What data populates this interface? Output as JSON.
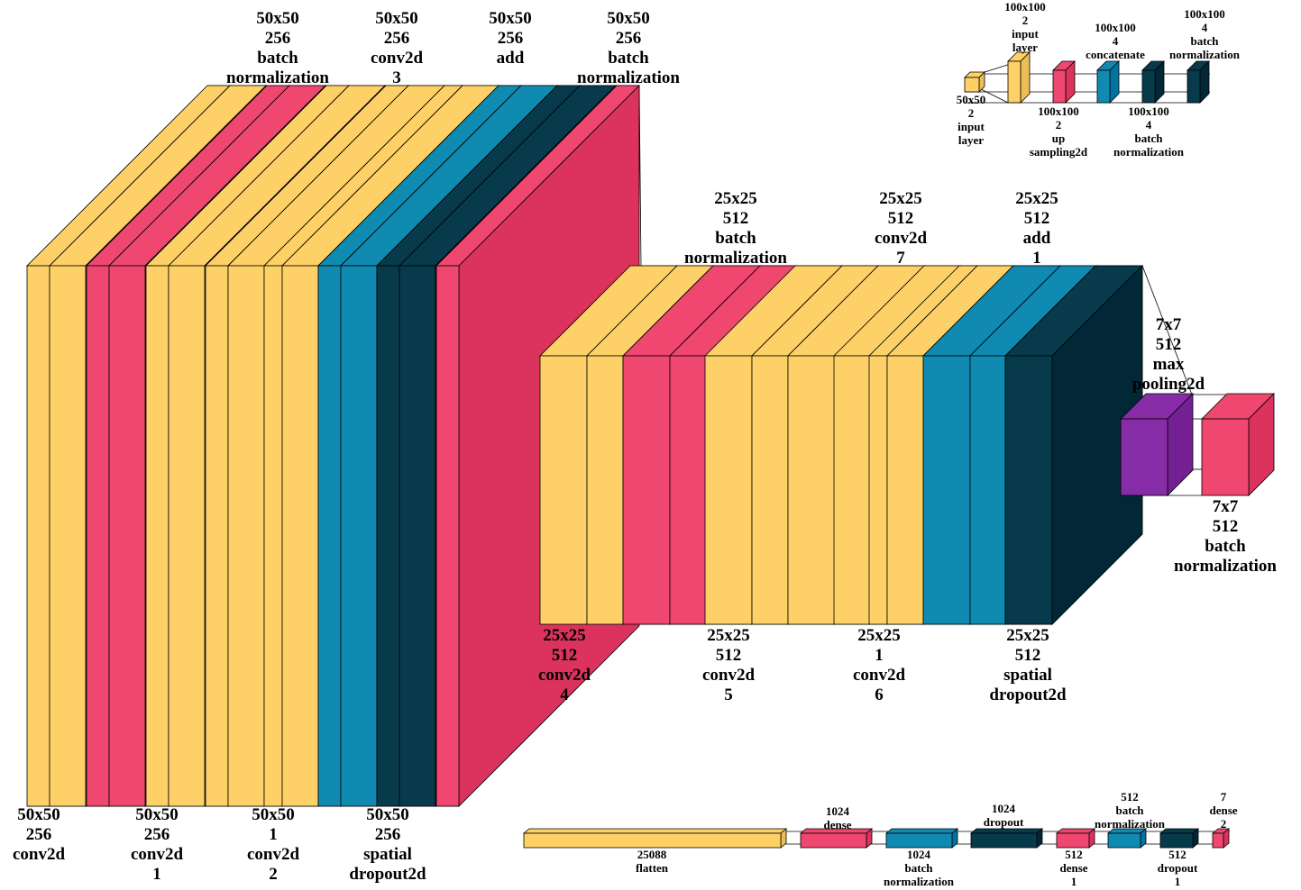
{
  "colors": {
    "yellow": "#fdd167",
    "yellow_side": "#ecbe55",
    "pink": "#ef4770",
    "pink_side": "#db335d",
    "blue": "#118ab2",
    "blue_side": "#0074a0",
    "navy": "#073b4c",
    "navy_side": "#022838",
    "purple": "#852ca6",
    "purple_side": "#741f92",
    "outline": "#000000"
  },
  "stage1": {
    "bottom_labels": [
      [
        "50x50",
        "256",
        "conv2d"
      ],
      [
        "50x50",
        "256",
        "conv2d",
        "1"
      ],
      [
        "50x50",
        "1",
        "conv2d",
        "2"
      ],
      [
        "50x50",
        "256",
        "spatial",
        "dropout2d"
      ]
    ],
    "top_labels": [
      [
        "50x50",
        "256",
        "batch",
        "normalization"
      ],
      [
        "50x50",
        "256",
        "conv2d",
        "3"
      ],
      [
        "50x50",
        "256",
        "add"
      ],
      [
        "50x50",
        "256",
        "batch",
        "normalization"
      ]
    ]
  },
  "stage2": {
    "top_labels": [
      [
        "25x25",
        "512",
        "batch",
        "normalization"
      ],
      [
        "25x25",
        "512",
        "conv2d",
        "7"
      ],
      [
        "25x25",
        "512",
        "add",
        "1"
      ]
    ],
    "bottom_labels": [
      [
        "25x25",
        "512",
        "conv2d",
        "4"
      ],
      [
        "25x25",
        "512",
        "conv2d",
        "5"
      ],
      [
        "25x25",
        "1",
        "conv2d",
        "6"
      ],
      [
        "25x25",
        "512",
        "spatial",
        "dropout2d"
      ]
    ]
  },
  "stage3": {
    "top_labels": [
      [
        "7x7",
        "512",
        "max",
        "pooling2d"
      ]
    ],
    "bottom_labels": [
      [
        "7x7",
        "512",
        "batch",
        "normalization"
      ]
    ]
  },
  "inset": {
    "top_labels": [
      [
        "100x100",
        "2",
        "input",
        "layer"
      ],
      [
        "100x100",
        "4",
        "concatenate"
      ],
      [
        "100x100",
        "4",
        "batch",
        "normalization"
      ]
    ],
    "bottom_labels": [
      [
        "50x50",
        "2",
        "input",
        "layer"
      ],
      [
        "100x100",
        "2",
        "up",
        "sampling2d"
      ],
      [
        "100x100",
        "4",
        "batch",
        "normalization"
      ]
    ]
  },
  "dense_head": {
    "top_labels": [
      [
        "1024",
        "dense"
      ],
      [
        "1024",
        "dropout"
      ],
      [
        "512",
        "batch",
        "normalization"
      ],
      [
        "7",
        "dense",
        "2"
      ]
    ],
    "bottom_labels": [
      [
        "25088",
        "flatten"
      ],
      [
        "1024",
        "batch",
        "normalization"
      ],
      [
        "512",
        "dense",
        "1"
      ],
      [
        "512",
        "dropout",
        "1"
      ]
    ]
  }
}
